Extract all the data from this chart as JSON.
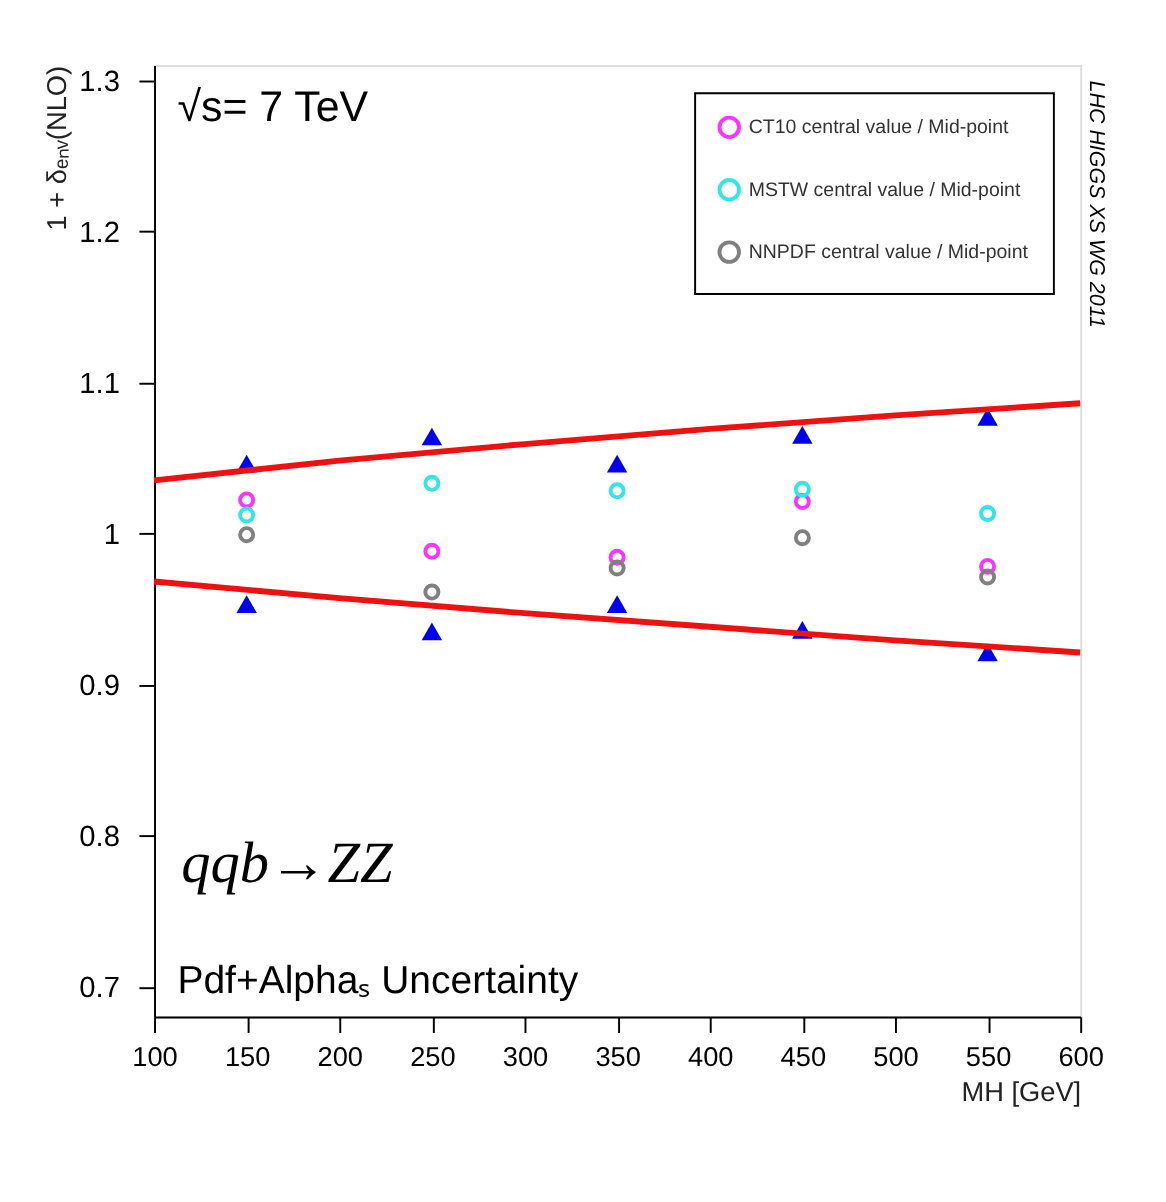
{
  "chart_data": {
    "type": "scatter",
    "xlabel": "MH [GeV]",
    "ylabel": "1 + δₑₙᵥ(NLO)",
    "xlim": [
      100,
      600
    ],
    "xticks": [
      100,
      150,
      200,
      250,
      300,
      350,
      400,
      450,
      500,
      550,
      600
    ],
    "ylim": [
      0.68,
      1.31
    ],
    "yticks": [
      0.7,
      0.8,
      0.9,
      1,
      1.1,
      1.2,
      1.3
    ],
    "grid": false,
    "legend": "top right",
    "marker": "circle",
    "annotations": [
      "√s= 7 TeV",
      "qqb→ZZ",
      "Pdf+Alphaₛ Uncertainty",
      "LHC HIGGS XS WG 2011"
    ],
    "x": [
      150,
      250,
      350,
      450,
      550
    ],
    "series": [
      {
        "name": "CT10 central value / Mid-point",
        "color": "#ff33ff",
        "values": [
          1.022,
          0.988,
          0.984,
          1.021,
          0.978
        ]
      },
      {
        "name": "MSTW central value / Mid-point",
        "color": "#33e5e5",
        "values": [
          1.012,
          1.033,
          1.028,
          1.029,
          1.013
        ]
      },
      {
        "name": "NNPDF central value / Mid-point",
        "color": "#808080",
        "values": [
          0.999,
          0.961,
          0.977,
          0.997,
          0.971
        ]
      },
      {
        "type": "scatter",
        "marker": "triangle",
        "color": "#0000ee",
        "values": [
          1.046,
          1.064,
          1.046,
          1.065,
          1.077
        ]
      },
      {
        "type": "scatter",
        "marker": "triangle",
        "color": "#0000ee",
        "values": [
          0.953,
          0.935,
          0.953,
          0.936,
          0.921
        ]
      },
      {
        "type": "line",
        "marker": "none",
        "line_style": "solid",
        "color": "#ee1111",
        "x": [
          100,
          200,
          300,
          400,
          500,
          600
        ],
        "values": [
          1.035,
          1.048,
          1.059,
          1.069,
          1.078,
          1.086
        ]
      },
      {
        "type": "line",
        "marker": "none",
        "line_style": "solid",
        "color": "#ee1111",
        "x": [
          100,
          200,
          300,
          400,
          500,
          600
        ],
        "values": [
          0.968,
          0.957,
          0.947,
          0.938,
          0.929,
          0.921
        ]
      }
    ]
  }
}
